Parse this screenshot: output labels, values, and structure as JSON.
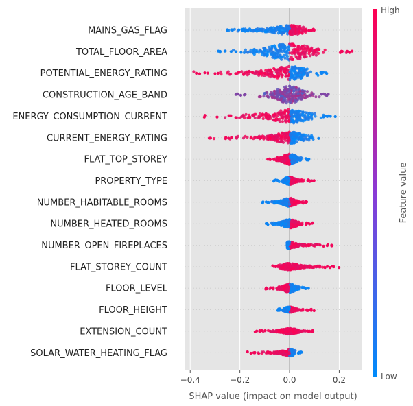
{
  "chart_data": {
    "type": "scatter",
    "subtype": "shap-beeswarm",
    "xlabel": "SHAP value (impact on model output)",
    "xlim": [
      -0.42,
      0.29
    ],
    "xticks": [
      -0.4,
      -0.2,
      0.0,
      0.2
    ],
    "xtick_labels": [
      "−0.4",
      "−0.2",
      "0.0",
      "0.2"
    ],
    "colorbar": {
      "label": "Feature value",
      "high_label": "High",
      "low_label": "Low",
      "low_color": "#008bfb",
      "high_color": "#ff0051"
    },
    "background_color": "#e5e5e5",
    "features": [
      {
        "name": "MAINS_GAS_FLAG",
        "min": -0.25,
        "max": 0.1,
        "neg_spread": 0.22,
        "pos_spread": 0.06,
        "spread_width": 0.5,
        "neg_color": "low",
        "pos_color": "high"
      },
      {
        "name": "TOTAL_FLOOR_AREA",
        "min": -0.3,
        "max": 0.26,
        "neg_spread": 0.2,
        "pos_spread": 0.16,
        "spread_width": 0.9,
        "neg_color": "low",
        "pos_color": "high"
      },
      {
        "name": "POTENTIAL_ENERGY_RATING",
        "min": -0.39,
        "max": 0.15,
        "neg_spread": 0.25,
        "pos_spread": 0.1,
        "spread_width": 0.7,
        "neg_color": "high",
        "pos_color": "low"
      },
      {
        "name": "CONSTRUCTION_AGE_BAND",
        "min": -0.22,
        "max": 0.16,
        "neg_spread": 0.12,
        "pos_spread": 0.1,
        "spread_width": 0.9,
        "neg_color": "mixed",
        "pos_color": "mixed"
      },
      {
        "name": "ENERGY_CONSUMPTION_CURRENT",
        "min": -0.36,
        "max": 0.2,
        "neg_spread": 0.18,
        "pos_spread": 0.12,
        "spread_width": 0.75,
        "neg_color": "high",
        "pos_color": "low"
      },
      {
        "name": "CURRENT_ENERGY_RATING",
        "min": -0.35,
        "max": 0.12,
        "neg_spread": 0.18,
        "pos_spread": 0.08,
        "spread_width": 0.6,
        "neg_color": "high",
        "pos_color": "low"
      },
      {
        "name": "FLAT_TOP_STOREY",
        "min": -0.09,
        "max": 0.08,
        "neg_spread": 0.06,
        "pos_spread": 0.05,
        "spread_width": 0.55,
        "neg_color": "high",
        "pos_color": "low"
      },
      {
        "name": "PROPERTY_TYPE",
        "min": -0.07,
        "max": 0.1,
        "neg_spread": 0.03,
        "pos_spread": 0.06,
        "spread_width": 0.4,
        "neg_color": "low",
        "pos_color": "high"
      },
      {
        "name": "NUMBER_HABITABLE_ROOMS",
        "min": -0.12,
        "max": 0.07,
        "neg_spread": 0.06,
        "pos_spread": 0.04,
        "spread_width": 0.45,
        "neg_color": "low",
        "pos_color": "high"
      },
      {
        "name": "NUMBER_HEATED_ROOMS",
        "min": -0.1,
        "max": 0.1,
        "neg_spread": 0.06,
        "pos_spread": 0.05,
        "spread_width": 0.45,
        "neg_color": "low",
        "pos_color": "high"
      },
      {
        "name": "NUMBER_OPEN_FIREPLACES",
        "min": -0.01,
        "max": 0.17,
        "neg_spread": 0.01,
        "pos_spread": 0.1,
        "spread_width": 0.35,
        "neg_color": "low",
        "pos_color": "high"
      },
      {
        "name": "FLAT_STOREY_COUNT",
        "min": -0.07,
        "max": 0.2,
        "neg_spread": 0.04,
        "pos_spread": 0.12,
        "spread_width": 0.35,
        "neg_color": "high",
        "pos_color": "high"
      },
      {
        "name": "FLOOR_LEVEL",
        "min": -0.1,
        "max": 0.08,
        "neg_spread": 0.06,
        "pos_spread": 0.04,
        "spread_width": 0.45,
        "neg_color": "high",
        "pos_color": "low"
      },
      {
        "name": "FLOOR_HEIGHT",
        "min": -0.05,
        "max": 0.1,
        "neg_spread": 0.03,
        "pos_spread": 0.06,
        "spread_width": 0.3,
        "neg_color": "low",
        "pos_color": "high"
      },
      {
        "name": "EXTENSION_COUNT",
        "min": -0.15,
        "max": 0.1,
        "neg_spread": 0.08,
        "pos_spread": 0.06,
        "spread_width": 0.3,
        "neg_color": "high",
        "pos_color": "high"
      },
      {
        "name": "SOLAR_WATER_HEATING_FLAG",
        "min": -0.18,
        "max": 0.05,
        "neg_spread": 0.1,
        "pos_spread": 0.02,
        "spread_width": 0.35,
        "neg_color": "high",
        "pos_color": "low"
      }
    ]
  }
}
